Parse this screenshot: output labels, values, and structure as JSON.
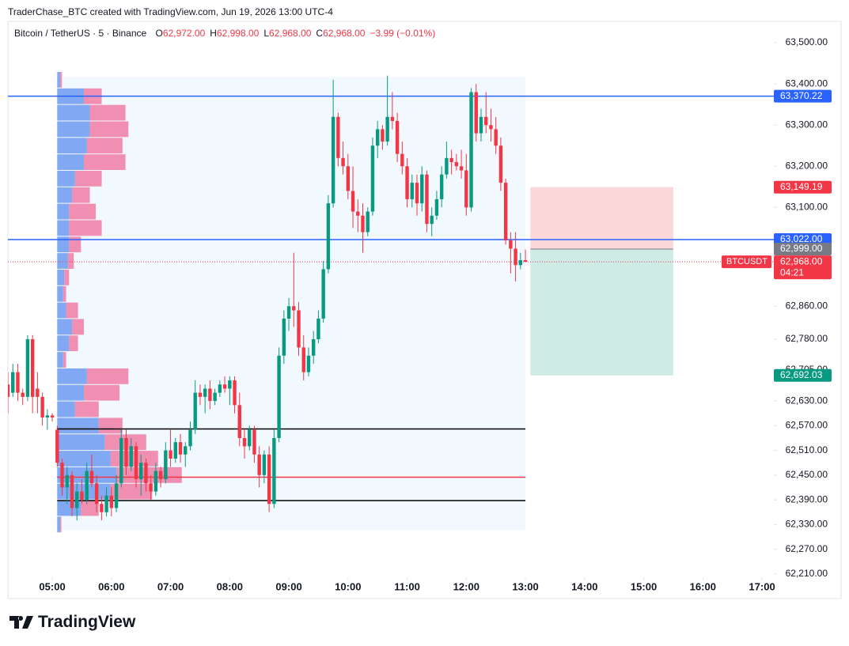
{
  "header": {
    "credit": "TraderChase_BTC created with TradingView.com, Jun 19, 2026 13:00 UTC-4"
  },
  "footer": {
    "brand": "TradingView"
  },
  "chart_data": {
    "type": "candlestick",
    "title": "Bitcoin / TetherUS · 5 · Binance",
    "legend": [
      {
        "key": "O",
        "text": "62,972.00"
      },
      {
        "key": "H",
        "text": "62,998.00"
      },
      {
        "key": "L",
        "text": "62,968.00"
      },
      {
        "key": "C",
        "text": "62,968.00"
      }
    ],
    "change": "−3.99 (−0.01%)",
    "up_color": "#089981",
    "down_color": "#f23645",
    "x": [
      "04:15",
      "04:20",
      "04:25",
      "04:30",
      "04:35",
      "04:40",
      "04:45",
      "04:50",
      "04:55",
      "05:00",
      "05:05",
      "05:10",
      "05:15",
      "05:20",
      "05:25",
      "05:30",
      "05:35",
      "05:40",
      "05:45",
      "05:50",
      "05:55",
      "06:00",
      "06:05",
      "06:10",
      "06:15",
      "06:20",
      "06:25",
      "06:30",
      "06:35",
      "06:40",
      "06:45",
      "06:50",
      "06:55",
      "07:00",
      "07:05",
      "07:10",
      "07:15",
      "07:20",
      "07:25",
      "07:30",
      "07:35",
      "07:40",
      "07:45",
      "07:50",
      "07:55",
      "08:00",
      "08:05",
      "08:10",
      "08:15",
      "08:20",
      "08:25",
      "08:30",
      "08:35",
      "08:40",
      "08:45",
      "08:50",
      "08:55",
      "09:00",
      "09:05",
      "09:10",
      "09:15",
      "09:20",
      "09:25",
      "09:30",
      "09:35",
      "09:40",
      "09:45",
      "09:50",
      "09:55",
      "10:00",
      "10:05",
      "10:10",
      "10:15",
      "10:20",
      "10:25",
      "10:30",
      "10:35",
      "10:40",
      "10:45",
      "10:50",
      "10:55",
      "11:00",
      "11:05",
      "11:10",
      "11:15",
      "11:20",
      "11:25",
      "11:30",
      "11:35",
      "11:40",
      "11:45",
      "11:50",
      "11:55",
      "12:00",
      "12:05",
      "12:10",
      "12:15",
      "12:20",
      "12:25",
      "12:30",
      "12:35",
      "12:40",
      "12:45",
      "12:50",
      "12:55",
      "13:00"
    ],
    "open": [
      62670,
      62650,
      62700,
      62650,
      62640,
      62780,
      62660,
      62640,
      62590,
      62595,
      62560,
      62480,
      62420,
      62450,
      62370,
      62410,
      62390,
      62460,
      62430,
      62380,
      62360,
      62400,
      62370,
      62430,
      62540,
      62470,
      62520,
      62440,
      62480,
      62430,
      62410,
      62460,
      62440,
      62510,
      62490,
      62530,
      62500,
      62520,
      62560,
      62650,
      62640,
      62660,
      62630,
      62650,
      62670,
      62660,
      62680,
      62620,
      62540,
      62520,
      62560,
      62500,
      62450,
      62500,
      62380,
      62540,
      62740,
      62830,
      62860,
      62850,
      62760,
      62700,
      62740,
      62780,
      62830,
      62950,
      63110,
      63320,
      63220,
      63200,
      63140,
      63090,
      63080,
      63040,
      63090,
      63250,
      63290,
      63260,
      63320,
      63310,
      63230,
      63200,
      63120,
      63160,
      63110,
      63180,
      63060,
      63080,
      63120,
      63180,
      63220,
      63210,
      63200,
      63190,
      63100,
      63380,
      63280,
      63320,
      63300,
      63290,
      63250,
      63160,
      63020,
      63000,
      62960,
      62972
    ],
    "high": [
      62700,
      62720,
      62720,
      62660,
      62790,
      62790,
      62700,
      62650,
      62610,
      62600,
      62570,
      62490,
      62470,
      62460,
      62430,
      62440,
      62480,
      62500,
      62450,
      62400,
      62420,
      62420,
      62450,
      62560,
      62560,
      62540,
      62530,
      62500,
      62490,
      62450,
      62480,
      62470,
      62530,
      62560,
      62540,
      62550,
      62530,
      62580,
      62680,
      62670,
      62670,
      62680,
      62660,
      62680,
      62690,
      62690,
      62690,
      62650,
      62560,
      62570,
      62570,
      62520,
      62510,
      62520,
      62560,
      62760,
      62850,
      62880,
      62990,
      62870,
      62790,
      62760,
      62800,
      62850,
      62970,
      63130,
      63410,
      63330,
      63260,
      63230,
      63200,
      63120,
      63110,
      63100,
      63270,
      63310,
      63300,
      63420,
      63380,
      63330,
      63260,
      63220,
      63180,
      63180,
      63200,
      63190,
      63100,
      63140,
      63200,
      63260,
      63240,
      63230,
      63240,
      63230,
      63390,
      63400,
      63340,
      63380,
      63340,
      63320,
      63270,
      63170,
      63040,
      63040,
      62990,
      62998
    ],
    "low": [
      62600,
      62640,
      62630,
      62620,
      62630,
      62600,
      62600,
      62570,
      62560,
      62580,
      62470,
      62400,
      62380,
      62350,
      62340,
      62380,
      62380,
      62420,
      62360,
      62340,
      62350,
      62350,
      62360,
      62420,
      62450,
      62460,
      62420,
      62400,
      62410,
      62390,
      62400,
      62420,
      62430,
      62470,
      62480,
      62480,
      62470,
      62510,
      62550,
      62620,
      62600,
      62610,
      62620,
      62640,
      62650,
      62620,
      62600,
      62520,
      62490,
      62510,
      62480,
      62420,
      62430,
      62360,
      62370,
      62530,
      62720,
      62800,
      62810,
      62740,
      62680,
      62690,
      62720,
      62770,
      62820,
      62940,
      63100,
      63200,
      63180,
      63120,
      63050,
      63040,
      62990,
      63030,
      63080,
      63220,
      63240,
      63250,
      63290,
      63210,
      63180,
      63100,
      63100,
      63080,
      63090,
      63040,
      63030,
      63070,
      63100,
      63170,
      63180,
      63190,
      63170,
      63080,
      63090,
      63260,
      63260,
      63280,
      63260,
      63230,
      63140,
      63010,
      62940,
      62920,
      62950,
      62968
    ],
    "close": [
      62640,
      62700,
      62650,
      62640,
      62780,
      62640,
      62640,
      62590,
      62595,
      62590,
      62480,
      62420,
      62450,
      62370,
      62410,
      62390,
      62460,
      62430,
      62380,
      62360,
      62400,
      62370,
      62430,
      62540,
      62470,
      62520,
      62440,
      62480,
      62430,
      62410,
      62460,
      62440,
      62510,
      62490,
      62530,
      62500,
      62520,
      62560,
      62650,
      62640,
      62660,
      62630,
      62650,
      62670,
      62660,
      62680,
      62620,
      62540,
      62520,
      62560,
      62500,
      62450,
      62500,
      62380,
      62540,
      62740,
      62830,
      62860,
      62850,
      62760,
      62700,
      62740,
      62780,
      62830,
      62950,
      63110,
      63320,
      63220,
      63200,
      63140,
      63090,
      63080,
      63040,
      63090,
      63250,
      63290,
      63260,
      63320,
      63310,
      63230,
      63200,
      63120,
      63160,
      63110,
      63180,
      63060,
      63080,
      63120,
      63180,
      63220,
      63210,
      63200,
      63190,
      63100,
      63380,
      63280,
      63320,
      63300,
      63290,
      63250,
      63160,
      63020,
      63000,
      62960,
      62972,
      62968
    ],
    "xlim": [
      "04:15",
      "17:12"
    ],
    "xticks": [
      "05:00",
      "06:00",
      "07:00",
      "08:00",
      "09:00",
      "10:00",
      "11:00",
      "12:00",
      "13:00",
      "14:00",
      "15:00",
      "16:00",
      "17:00"
    ],
    "ylim": [
      62202,
      63550
    ],
    "yticks": [
      {
        "value": 63500,
        "label": "63,500.00"
      },
      {
        "value": 63400,
        "label": "63,400.00"
      },
      {
        "value": 63300,
        "label": "63,300.00"
      },
      {
        "value": 63200,
        "label": "63,200.00"
      },
      {
        "value": 63100,
        "label": "63,100.00"
      },
      {
        "value": 62860,
        "label": "62,860.00"
      },
      {
        "value": 62780,
        "label": "62,780.00"
      },
      {
        "value": 62705,
        "label": "62,705.00"
      },
      {
        "value": 62630,
        "label": "62,630.00"
      },
      {
        "value": 62570,
        "label": "62,570.00"
      },
      {
        "value": 62510,
        "label": "62,510.00"
      },
      {
        "value": 62450,
        "label": "62,450.00"
      },
      {
        "value": 62390,
        "label": "62,390.00"
      },
      {
        "value": 62330,
        "label": "62,330.00"
      },
      {
        "value": 62270,
        "label": "62,270.00"
      },
      {
        "value": 62210,
        "label": "62,210.00"
      }
    ],
    "grid": false,
    "hlines": [
      {
        "value": 63370.22,
        "color": "#2962ff"
      },
      {
        "value": 63022.0,
        "color": "#2962ff"
      },
      {
        "value": 62562,
        "color": "#000000"
      },
      {
        "value": 62445,
        "color": "#f23645"
      },
      {
        "value": 62388,
        "color": "#000000"
      }
    ],
    "last_price": {
      "value": 62968.0,
      "color": "#f23645",
      "symbol": "BTCUSDT",
      "countdown": "04:21"
    },
    "price_labels": [
      {
        "value": 63370.22,
        "label": "63,370.22",
        "color": "#2962ff"
      },
      {
        "value": 63149.19,
        "label": "63,149.19",
        "color": "#f23645"
      },
      {
        "value": 63022.0,
        "label": "63,022.00",
        "color": "#2962ff"
      },
      {
        "value": 62999.0,
        "label": "62,999.00",
        "color": "#787b86"
      },
      {
        "value": 62968.0,
        "label": "62,968.00",
        "color": "#f23645"
      },
      {
        "value": 62692.03,
        "label": "62,692.03",
        "color": "#089981"
      }
    ],
    "position": {
      "entry": 62999.0,
      "stop": 63149.19,
      "target": 62692.03,
      "start": "13:05",
      "end": "15:30"
    },
    "profile": {
      "start": "05:05",
      "end": "13:00",
      "high": 63417,
      "low": 62316,
      "row_prices": [
        63410,
        63370,
        63330,
        63290,
        63250,
        63210,
        63170,
        63130,
        63090,
        63050,
        63010,
        62970,
        62930,
        62890,
        62850,
        62810,
        62770,
        62730,
        62690,
        62650,
        62610,
        62570,
        62530,
        62490,
        62450,
        62410,
        62370,
        62330
      ],
      "row_height": 40,
      "up_volume": [
        5,
        45,
        55,
        55,
        50,
        45,
        30,
        25,
        20,
        20,
        20,
        18,
        12,
        10,
        15,
        25,
        20,
        10,
        50,
        45,
        30,
        70,
        80,
        90,
        100,
        90,
        40,
        5
      ],
      "down_volume": [
        3,
        30,
        60,
        65,
        60,
        70,
        45,
        30,
        45,
        55,
        20,
        10,
        8,
        5,
        20,
        20,
        15,
        5,
        70,
        60,
        40,
        40,
        70,
        80,
        110,
        70,
        30,
        2
      ],
      "up_color": "#5b8def",
      "down_color": "#f06292"
    }
  }
}
